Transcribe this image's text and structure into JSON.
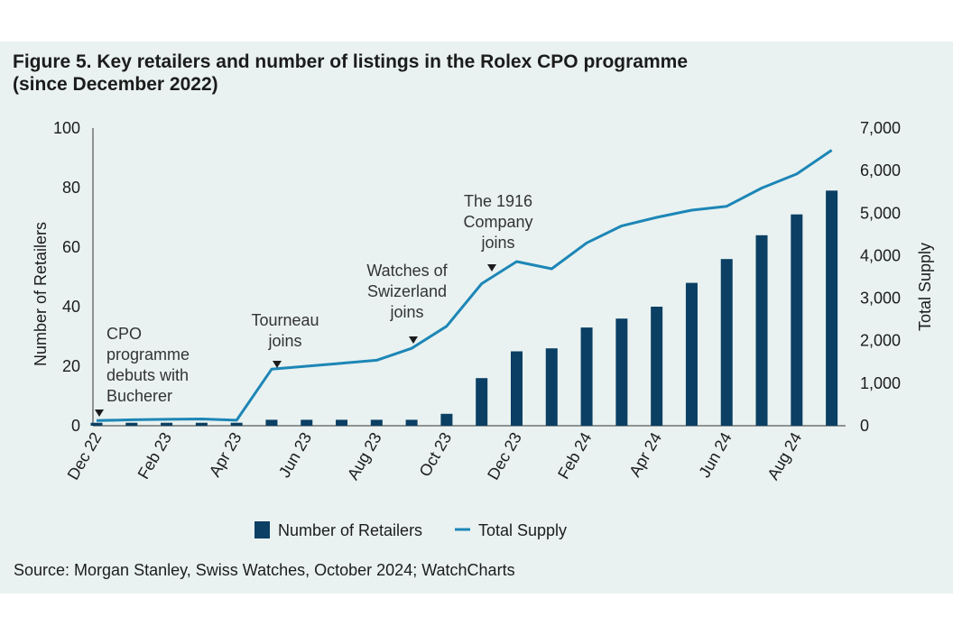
{
  "title_line1": "Figure 5. Key retailers and number of listings in the Rolex CPO programme",
  "title_line2": "(since December 2022)",
  "source": "Source: Morgan Stanley, Swiss Watches, October 2024; WatchCharts",
  "colors": {
    "bar": "#0b3f63",
    "line": "#1d86b6",
    "background": "#e9f2f1",
    "text": "#1c1c1c"
  },
  "chart_data": {
    "type": "bar",
    "ylabel": "Number of Retailers",
    "y2label": "Total Supply",
    "ylim": [
      0,
      100
    ],
    "y2lim": [
      0,
      7000
    ],
    "yticks": [
      "0",
      "20",
      "40",
      "60",
      "80",
      "100"
    ],
    "y2ticks": [
      "0",
      "1,000",
      "2,000",
      "3,000",
      "4,000",
      "5,000",
      "6,000",
      "7,000"
    ],
    "xtick_labels": [
      "Dec 22",
      "Feb 23",
      "Apr 23",
      "Jun 23",
      "Aug 23",
      "Oct 23",
      "Dec 23",
      "Feb 24",
      "Apr 24",
      "Jun 24",
      "Aug 24"
    ],
    "x": [
      "Dec 22",
      "Jan 23",
      "Feb 23",
      "Mar 23",
      "Apr 23",
      "May 23",
      "Jun 23",
      "Jul 23",
      "Aug 23",
      "Sep 23",
      "Oct 23",
      "Nov 23",
      "Dec 23",
      "Jan 24",
      "Feb 24",
      "Mar 24",
      "Apr 24",
      "May 24",
      "Jun 24",
      "Jul 24",
      "Aug 24",
      "Sep 24"
    ],
    "series": [
      {
        "name": "Number of Retailers",
        "type": "bar",
        "axis": "left",
        "values": [
          1,
          1,
          1,
          1,
          1,
          2,
          2,
          2,
          2,
          2,
          4,
          16,
          25,
          26,
          33,
          36,
          40,
          48,
          56,
          64,
          71,
          79
        ]
      },
      {
        "name": "Total Supply",
        "type": "line",
        "axis": "right",
        "values": [
          120,
          140,
          150,
          160,
          130,
          1330,
          1400,
          1470,
          1540,
          1820,
          2340,
          3340,
          3860,
          3690,
          4300,
          4700,
          4900,
          5070,
          5160,
          5590,
          5920,
          6480
        ]
      }
    ],
    "annotations": [
      {
        "text": "CPO programme debuts with Bucherer",
        "lines": [
          "CPO",
          "programme",
          "debuts with",
          "Bucherer"
        ],
        "at": "Dec 22"
      },
      {
        "text": "Tourneau joins",
        "lines": [
          "Tourneau",
          "joins"
        ],
        "at": "May 23"
      },
      {
        "text": "Watches of Swizerland joins",
        "lines": [
          "Watches of",
          "Swizerland",
          "joins"
        ],
        "at": "Sep 23"
      },
      {
        "text": "The 1916 Company joins",
        "lines": [
          "The 1916",
          "Company",
          "joins"
        ],
        "at": "Nov 23"
      }
    ],
    "legend": {
      "position": "bottom",
      "entries": [
        "Number of Retailers",
        "Total Supply"
      ]
    },
    "grid": false
  }
}
